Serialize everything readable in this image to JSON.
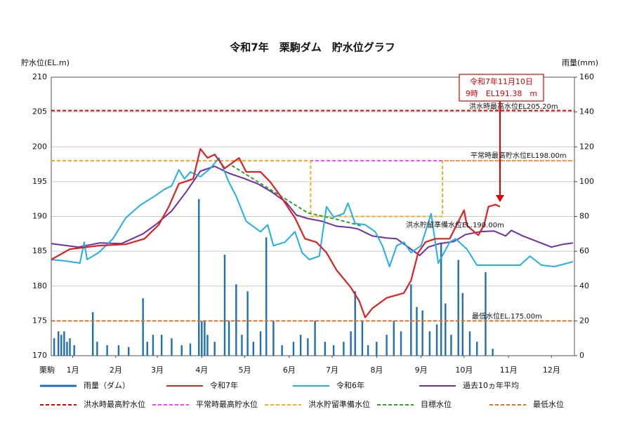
{
  "chart_data": {
    "type": "line",
    "title": "令和7年　栗駒ダム　貯水位グラフ",
    "y_label": "貯水位(EL.m)",
    "y2_label": "雨量(mm)",
    "x_label": "栗駒",
    "xlim": [
      1,
      366
    ],
    "xticks": [
      {
        "value": 16,
        "label": "1月"
      },
      {
        "value": 46,
        "label": "2月"
      },
      {
        "value": 75,
        "label": "3月"
      },
      {
        "value": 106,
        "label": "4月"
      },
      {
        "value": 136,
        "label": "5月"
      },
      {
        "value": 167,
        "label": "6月"
      },
      {
        "value": 197,
        "label": "7月"
      },
      {
        "value": 228,
        "label": "8月"
      },
      {
        "value": 259,
        "label": "9月"
      },
      {
        "value": 289,
        "label": "10月"
      },
      {
        "value": 320,
        "label": "11月"
      },
      {
        "value": 350,
        "label": "12月"
      }
    ],
    "ylim": [
      170,
      210
    ],
    "yticks": [
      170,
      175,
      180,
      185,
      190,
      195,
      200,
      205,
      210
    ],
    "y2lim": [
      0,
      160
    ],
    "y2ticks": [
      0,
      20,
      40,
      60,
      80,
      100,
      120,
      140,
      160
    ],
    "grid": true,
    "series": [
      {
        "name": "雨量（ダム）",
        "type": "bar",
        "axis": "y2",
        "color": "#1f6fb5",
        "x": [
          3,
          6,
          8,
          10,
          12,
          14,
          17,
          30,
          33,
          40,
          48,
          55,
          65,
          68,
          72,
          78,
          85,
          92,
          98,
          104,
          106,
          108,
          110,
          115,
          122,
          125,
          130,
          134,
          138,
          142,
          147,
          151,
          156,
          162,
          170,
          175,
          180,
          185,
          192,
          198,
          205,
          210,
          213,
          218,
          222,
          228,
          235,
          240,
          245,
          252,
          256,
          260,
          265,
          270,
          273,
          276,
          280,
          285,
          288,
          293,
          298,
          304,
          309
        ],
        "values": [
          10,
          14,
          12,
          14,
          8,
          10,
          6,
          25,
          8,
          6,
          6,
          5,
          33,
          8,
          12,
          12,
          10,
          6,
          7,
          90,
          20,
          20,
          12,
          8,
          58,
          20,
          41,
          12,
          37,
          8,
          14,
          68,
          20,
          6,
          8,
          12,
          10,
          20,
          8,
          6,
          8,
          14,
          37,
          20,
          6,
          8,
          12,
          20,
          14,
          41,
          28,
          26,
          14,
          18,
          65,
          30,
          12,
          55,
          36,
          14,
          8,
          48,
          4
        ]
      },
      {
        "name": "令和7年",
        "color": "#e02020",
        "width": 2.2,
        "x": [
          1,
          14,
          34,
          53,
          66,
          76,
          83,
          90,
          100,
          105,
          110,
          115,
          122,
          132,
          137,
          147,
          154,
          161,
          171,
          178,
          186,
          193,
          200,
          210,
          216,
          220,
          225,
          235,
          247,
          252,
          257,
          262,
          269,
          279,
          289,
          291,
          299,
          303,
          306,
          311,
          314
        ],
        "values": [
          183.8,
          185.3,
          185.8,
          186.0,
          186.8,
          188.8,
          191.4,
          194.7,
          195.4,
          199.7,
          198.4,
          198.9,
          196.9,
          198.4,
          196.4,
          196.4,
          194.9,
          192.9,
          189.8,
          186.8,
          186.3,
          184.8,
          182.3,
          179.8,
          177.8,
          175.5,
          176.8,
          178.3,
          179.0,
          180.8,
          184.8,
          186.3,
          186.8,
          186.8,
          190.9,
          188.7,
          187.3,
          188.8,
          191.4,
          191.7,
          191.4
        ]
      },
      {
        "name": "令和6年",
        "color": "#20b0e8",
        "width": 2,
        "x": [
          1,
          11,
          21,
          24,
          26,
          34,
          44,
          53,
          63,
          73,
          80,
          85,
          90,
          94,
          98,
          105,
          112,
          118,
          125,
          130,
          137,
          147,
          152,
          156,
          164,
          171,
          176,
          181,
          188,
          193,
          198,
          205,
          208,
          213,
          220,
          227,
          232,
          237,
          242,
          247,
          252,
          259,
          266,
          271,
          279,
          283,
          291,
          298,
          318,
          328,
          335,
          343,
          352,
          365
        ],
        "values": [
          183.8,
          183.6,
          183.3,
          186.3,
          183.8,
          184.8,
          186.8,
          189.8,
          191.6,
          192.9,
          193.9,
          194.4,
          196.7,
          195.4,
          196.4,
          195.7,
          196.9,
          198.4,
          194.9,
          192.9,
          189.3,
          187.8,
          188.8,
          185.8,
          186.3,
          187.8,
          184.8,
          183.8,
          184.3,
          191.4,
          189.9,
          190.4,
          191.9,
          189.0,
          188.8,
          187.8,
          185.8,
          182.8,
          185.8,
          186.3,
          184.8,
          185.8,
          190.4,
          183.3,
          186.3,
          186.8,
          185.3,
          183.0,
          183.0,
          183.0,
          184.3,
          183.0,
          182.8,
          183.5
        ]
      },
      {
        "name": "過去10ヵ年平均",
        "color": "#7030a0",
        "width": 2,
        "x": [
          1,
          20,
          35,
          50,
          65,
          75,
          85,
          95,
          105,
          115,
          125,
          135,
          145,
          155,
          165,
          172,
          180,
          190,
          200,
          210,
          215,
          225,
          235,
          242,
          250,
          258,
          264,
          272,
          282,
          290,
          300,
          310,
          318,
          322,
          330,
          340,
          350,
          358,
          365
        ],
        "values": [
          186.1,
          185.6,
          186.2,
          186.1,
          187.5,
          189.0,
          190.8,
          193.5,
          196.5,
          197.2,
          196.2,
          195.5,
          194.7,
          193.5,
          192.0,
          190.2,
          189.7,
          189.3,
          188.6,
          188.4,
          188.2,
          187.2,
          186.9,
          186.8,
          185.6,
          184.4,
          185.6,
          186.1,
          186.4,
          187.4,
          187.8,
          187.9,
          187.2,
          188.0,
          187.2,
          186.4,
          185.6,
          186.0,
          186.2
        ]
      },
      {
        "name": "洪水時最高貯水位",
        "color": "#e00000",
        "style": "dashed",
        "width": 2,
        "x": [
          1,
          366
        ],
        "values": [
          205.2,
          205.2
        ]
      },
      {
        "name": "平常時最高貯水位",
        "color": "#ff40ff",
        "style": "dashed",
        "width": 2,
        "x": [
          1,
          366
        ],
        "values": [
          198.0,
          198.0
        ]
      },
      {
        "name": "洪水貯留準備水位",
        "color": "#f0b020",
        "style": "dashed",
        "width": 2,
        "x": [
          1,
          182,
          182,
          274,
          274,
          366
        ],
        "values": [
          198.0,
          198.0,
          190.0,
          190.0,
          198.0,
          198.0
        ]
      },
      {
        "name": "目標水位",
        "color": "#30a030",
        "style": "dashed",
        "width": 2,
        "x": [
          127,
          180,
          200,
          218
        ],
        "values": [
          197.3,
          190.5,
          189.6,
          188.6
        ]
      },
      {
        "name": "最低水位",
        "color": "#e07020",
        "style": "dashed",
        "width": 2,
        "x": [
          1,
          366
        ],
        "values": [
          175.0,
          175.0
        ]
      }
    ],
    "annotations": [
      "洪水時最高水位EL205.20m",
      "平常時最高貯水位EL198.00m",
      "洪水貯留準備水位EL.190.00m",
      "最低水位EL.175.00m"
    ],
    "callout": [
      "令和7年11月10日",
      "9時　EL191.38　m"
    ]
  }
}
